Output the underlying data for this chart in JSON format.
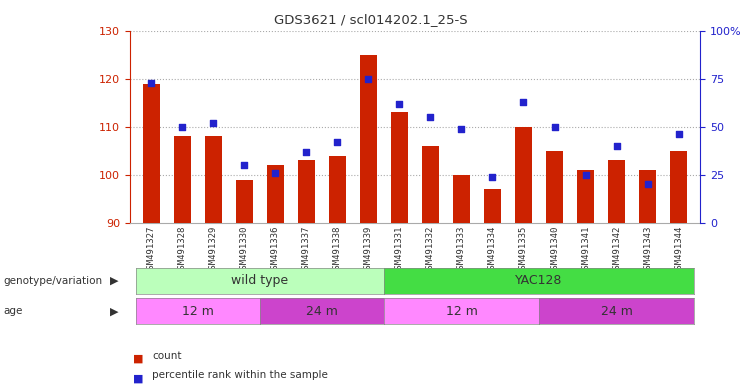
{
  "title": "GDS3621 / scl014202.1_25-S",
  "samples": [
    "GSM491327",
    "GSM491328",
    "GSM491329",
    "GSM491330",
    "GSM491336",
    "GSM491337",
    "GSM491338",
    "GSM491339",
    "GSM491331",
    "GSM491332",
    "GSM491333",
    "GSM491334",
    "GSM491335",
    "GSM491340",
    "GSM491341",
    "GSM491342",
    "GSM491343",
    "GSM491344"
  ],
  "counts": [
    119,
    108,
    108,
    99,
    102,
    103,
    104,
    125,
    113,
    106,
    100,
    97,
    110,
    105,
    101,
    103,
    101,
    105
  ],
  "percentile_ranks": [
    73,
    50,
    52,
    30,
    26,
    37,
    42,
    75,
    62,
    55,
    49,
    24,
    63,
    50,
    25,
    40,
    20,
    46
  ],
  "ylim_left": [
    90,
    130
  ],
  "ylim_right": [
    0,
    100
  ],
  "yticks_left": [
    90,
    100,
    110,
    120,
    130
  ],
  "yticks_right": [
    0,
    25,
    50,
    75,
    100
  ],
  "bar_color": "#cc2200",
  "dot_color": "#2222cc",
  "grid_color": "#aaaaaa",
  "bg_color": "#ffffff",
  "genotype_groups": [
    {
      "label": "wild type",
      "start": 0,
      "end": 8,
      "color": "#bbffbb"
    },
    {
      "label": "YAC128",
      "start": 8,
      "end": 18,
      "color": "#44dd44"
    }
  ],
  "age_groups": [
    {
      "label": "12 m",
      "start": 0,
      "end": 4,
      "color": "#ff88ff"
    },
    {
      "label": "24 m",
      "start": 4,
      "end": 8,
      "color": "#cc44cc"
    },
    {
      "label": "12 m",
      "start": 8,
      "end": 13,
      "color": "#ff88ff"
    },
    {
      "label": "24 m",
      "start": 13,
      "end": 18,
      "color": "#cc44cc"
    }
  ],
  "legend_items": [
    {
      "label": "count",
      "color": "#cc2200"
    },
    {
      "label": "percentile rank within the sample",
      "color": "#2222cc"
    }
  ],
  "left_axis_color": "#cc2200",
  "right_axis_color": "#2222cc",
  "right_ytick_labels": [
    "0",
    "25",
    "50",
    "75",
    "100%"
  ]
}
